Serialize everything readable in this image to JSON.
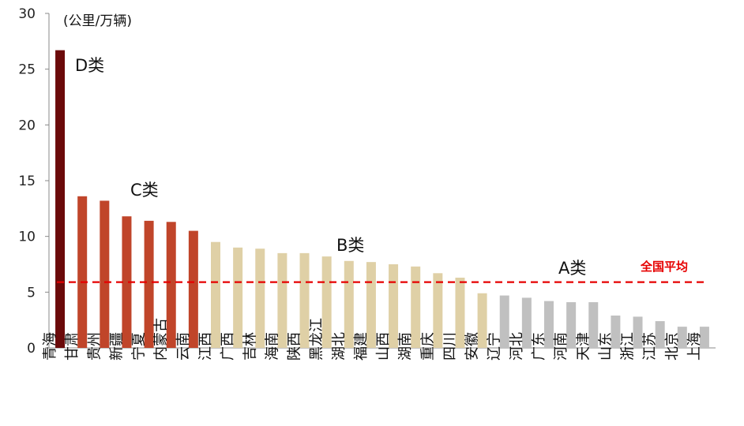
{
  "chart_data": {
    "type": "bar",
    "unit_label": "(公里/万辆)",
    "ylim": [
      0,
      30
    ],
    "yticks": [
      0,
      5,
      10,
      15,
      20,
      25,
      30
    ],
    "grid": false,
    "categories": [
      "青海",
      "甘肃",
      "贵州",
      "新疆",
      "宁夏",
      "内蒙古",
      "云南",
      "江西",
      "广西",
      "吉林",
      "海南",
      "陕西",
      "黑龙江",
      "湖北",
      "福建",
      "山西",
      "湖南",
      "重庆",
      "四川",
      "安徽",
      "辽宁",
      "河北",
      "广东",
      "河南",
      "天津",
      "山东",
      "浙江",
      "江苏",
      "北京",
      "上海"
    ],
    "values": [
      26.7,
      13.6,
      13.2,
      11.8,
      11.4,
      11.3,
      10.5,
      9.5,
      9.0,
      8.9,
      8.5,
      8.5,
      8.2,
      7.8,
      7.7,
      7.5,
      7.3,
      6.7,
      6.3,
      4.9,
      4.7,
      4.5,
      4.2,
      4.1,
      4.1,
      2.9,
      2.8,
      2.4,
      1.9,
      1.9
    ],
    "groups": [
      {
        "label": "D类",
        "start": 0,
        "end": 0,
        "color": "#6b0a0a"
      },
      {
        "label": "C类",
        "start": 1,
        "end": 6,
        "color": "#c0452a"
      },
      {
        "label": "B类",
        "start": 7,
        "end": 19,
        "color": "#dfd0a6"
      },
      {
        "label": "A类",
        "start": 20,
        "end": 29,
        "color": "#c0c0c0"
      }
    ],
    "average": {
      "label": "全国平均",
      "value": 5.9,
      "color": "#e60000"
    }
  }
}
